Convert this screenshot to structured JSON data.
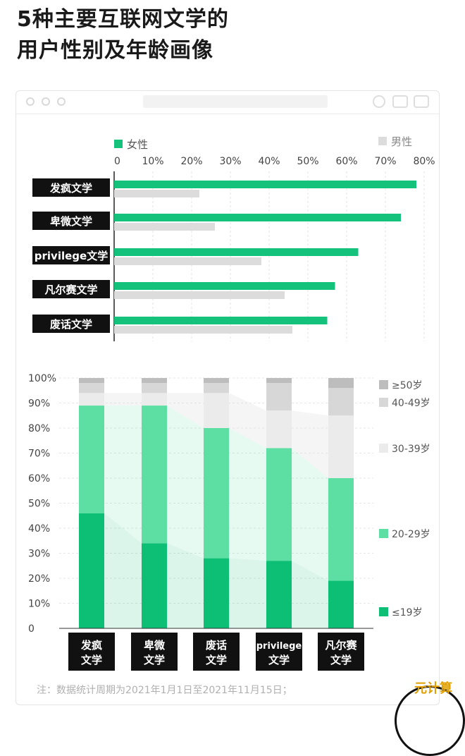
{
  "title_line1": "5种主要互联网文学的",
  "title_line2": "用户性别及年龄画像",
  "chart_data": [
    {
      "type": "bar",
      "orientation": "horizontal",
      "categories": [
        "发疯文学",
        "卑微文学",
        "privilege文学",
        "凡尔赛文学",
        "废话文学"
      ],
      "series": [
        {
          "name": "女性",
          "color": "#14c27c",
          "values": [
            78,
            74,
            63,
            57,
            55
          ]
        },
        {
          "name": "男性",
          "color": "#dcdcdc",
          "values": [
            22,
            26,
            38,
            44,
            46
          ]
        }
      ],
      "x_ticks": [
        "0",
        "10%",
        "20%",
        "30%",
        "40%",
        "50%",
        "60%",
        "70%",
        "80%"
      ],
      "xlim": [
        0,
        80
      ],
      "grid": "vertical-dashed",
      "legend": "top-left / top-right"
    },
    {
      "type": "bar",
      "stacked": true,
      "categories": [
        "发疯文学",
        "卑微文学",
        "废话文学",
        "privilege文学",
        "凡尔赛文学"
      ],
      "series": [
        {
          "name": "≤19岁",
          "color": "#0cbf75",
          "values": [
            46,
            34,
            28,
            27,
            19
          ]
        },
        {
          "name": "20-29岁",
          "color": "#5ddfa4",
          "values": [
            43,
            55,
            52,
            45,
            41
          ]
        },
        {
          "name": "30-39岁",
          "color": "#ebebeb",
          "values": [
            5,
            5,
            14,
            15,
            25
          ]
        },
        {
          "name": "40-49岁",
          "color": "#d7d7d7",
          "values": [
            4,
            4,
            4,
            11,
            11
          ]
        },
        {
          "name": "≥50岁",
          "color": "#bdbdbd",
          "values": [
            2,
            2,
            2,
            2,
            4
          ]
        }
      ],
      "y_ticks": [
        "100%",
        "90%",
        "80%",
        "70%",
        "60%",
        "50%",
        "40%",
        "30%",
        "20%",
        "10%",
        "0"
      ],
      "ylim": [
        0,
        100
      ],
      "legend": "right"
    }
  ],
  "footnote": "注：数据统计周期为2021年1月1日至2021年11月15日；",
  "corner_mark": "元计算"
}
